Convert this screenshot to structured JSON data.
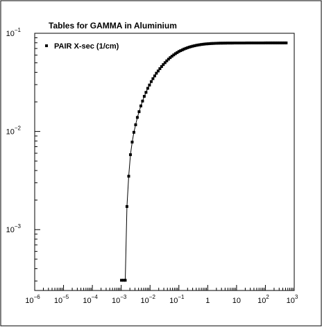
{
  "chart_data": {
    "type": "scatter",
    "title": "Tables for GAMMA in Aluminium",
    "xlabel": "",
    "ylabel": "",
    "x_scale": "log",
    "y_scale": "log",
    "xlim": [
      1e-06,
      1000
    ],
    "ylim": [
      0.00024,
      0.1
    ],
    "x_tick_labels": [
      {
        "base": "10",
        "exp": "−6"
      },
      {
        "base": "10",
        "exp": "−5"
      },
      {
        "base": "10",
        "exp": "−4"
      },
      {
        "base": "10",
        "exp": "−3"
      },
      {
        "base": "10",
        "exp": "−2"
      },
      {
        "base": "10",
        "exp": "−1"
      },
      {
        "base": "1",
        "exp": ""
      },
      {
        "base": "10",
        "exp": ""
      },
      {
        "base": "10",
        "exp": "2"
      },
      {
        "base": "10",
        "exp": "3"
      }
    ],
    "y_tick_labels": [
      {
        "base": "10",
        "exp": "−3"
      },
      {
        "base": "10",
        "exp": "−2"
      },
      {
        "base": "10",
        "exp": "−1"
      }
    ],
    "grid": false,
    "legend_position": "top-left",
    "series": [
      {
        "name": "PAIR X-sec (1/cm)",
        "color": "#000000",
        "marker": "square",
        "x": [
          0.00102,
          0.0012,
          0.00138,
          0.00158,
          0.00182,
          0.00209,
          0.0024,
          0.00275,
          0.00316,
          0.00363,
          0.00417,
          0.00479,
          0.0055,
          0.00631,
          0.00724,
          0.00832,
          0.00955,
          0.011,
          0.0126,
          0.0145,
          0.0166,
          0.0191,
          0.0219,
          0.0251,
          0.0288,
          0.0331,
          0.038,
          0.0437,
          0.0501,
          0.0575,
          0.0661,
          0.0759,
          0.0871,
          0.1,
          0.115,
          0.132,
          0.151,
          0.174,
          0.2,
          0.229,
          0.263,
          0.302,
          0.347,
          0.398,
          0.457,
          0.525,
          0.603,
          0.692,
          0.794,
          0.912,
          1.05,
          1.2,
          1.38,
          1.58,
          1.82,
          2.09,
          2.4,
          2.75,
          3.16,
          3.63,
          4.17,
          4.79,
          5.5,
          6.31,
          7.24,
          8.32,
          9.55,
          11,
          12.6,
          14.5,
          16.6,
          19.1,
          21.9,
          25.1,
          28.8,
          33.1,
          38,
          43.7,
          50.1,
          57.5,
          66.1,
          75.9,
          87.1,
          100,
          115,
          132,
          151,
          174,
          200,
          229,
          263,
          302,
          347,
          398,
          457,
          525
        ],
        "y": [
          0.000305,
          0.000305,
          0.000305,
          0.00172,
          0.0035,
          0.0058,
          0.0078,
          0.0098,
          0.0117,
          0.0139,
          0.0159,
          0.0182,
          0.0204,
          0.0228,
          0.025,
          0.0275,
          0.0297,
          0.0322,
          0.0345,
          0.0368,
          0.0392,
          0.0413,
          0.0436,
          0.0458,
          0.048,
          0.0502,
          0.0524,
          0.0545,
          0.0565,
          0.0584,
          0.0602,
          0.062,
          0.0636,
          0.0652,
          0.0665,
          0.0678,
          0.0691,
          0.0702,
          0.0713,
          0.0723,
          0.0731,
          0.0739,
          0.0746,
          0.0753,
          0.0759,
          0.0764,
          0.0769,
          0.0773,
          0.0777,
          0.078,
          0.0782,
          0.0785,
          0.0787,
          0.0788,
          0.079,
          0.0791,
          0.0792,
          0.0793,
          0.0793,
          0.0794,
          0.0794,
          0.0795,
          0.0795,
          0.0795,
          0.0795,
          0.0796,
          0.0796,
          0.0796,
          0.0796,
          0.0796,
          0.0796,
          0.0796,
          0.0797,
          0.0797,
          0.0797,
          0.0797,
          0.0797,
          0.0797,
          0.0797,
          0.0797,
          0.0797,
          0.0797,
          0.0797,
          0.0798,
          0.0798,
          0.0798,
          0.0798,
          0.0798,
          0.0798,
          0.0798,
          0.0798,
          0.0798,
          0.0798,
          0.0798,
          0.0798,
          0.0798
        ]
      }
    ]
  }
}
